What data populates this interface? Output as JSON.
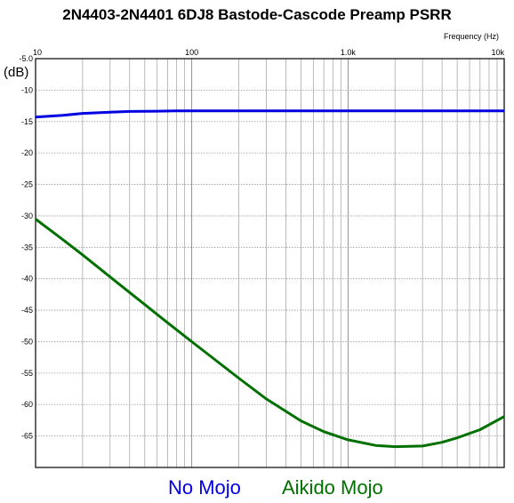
{
  "chart_data": {
    "type": "line",
    "title": "2N4403-2N4401 6DJ8 Bastode-Cascode Preamp PSRR",
    "xlabel": "Frequency  (Hz)",
    "ylabel": "(dB)",
    "x_scale": "log",
    "xlim": [
      10,
      10000
    ],
    "ylim": [
      -70,
      -5
    ],
    "grid": true,
    "legend_position": "bottom",
    "x_tick_labels": [
      {
        "value": 10,
        "label": "10"
      },
      {
        "value": 100,
        "label": "100"
      },
      {
        "value": 1000,
        "label": "1.0k"
      },
      {
        "value": 10000,
        "label": "10k"
      }
    ],
    "y_tick_labels": [
      {
        "value": -5,
        "label": "-5.0"
      },
      {
        "value": -10,
        "label": "-10"
      },
      {
        "value": -15,
        "label": "-15"
      },
      {
        "value": -20,
        "label": "-20"
      },
      {
        "value": -25,
        "label": "-25"
      },
      {
        "value": -30,
        "label": "-30"
      },
      {
        "value": -35,
        "label": "-35"
      },
      {
        "value": -40,
        "label": "-40"
      },
      {
        "value": -45,
        "label": "-45"
      },
      {
        "value": -50,
        "label": "-50"
      },
      {
        "value": -55,
        "label": "-55"
      },
      {
        "value": -60,
        "label": "-60"
      },
      {
        "value": -65,
        "label": "-65"
      }
    ],
    "series": [
      {
        "name": "No Mojo",
        "color": "#0000e0",
        "x": [
          10,
          15,
          20,
          30,
          40,
          60,
          80,
          100,
          200,
          500,
          1000,
          2000,
          5000,
          10000
        ],
        "y": [
          -14.3,
          -14.0,
          -13.7,
          -13.5,
          -13.4,
          -13.35,
          -13.3,
          -13.3,
          -13.3,
          -13.3,
          -13.3,
          -13.3,
          -13.3,
          -13.3
        ]
      },
      {
        "name": "Aikido Mojo",
        "color": "#007000",
        "x": [
          10,
          15,
          20,
          30,
          50,
          70,
          100,
          150,
          200,
          300,
          500,
          700,
          1000,
          1500,
          2000,
          3000,
          4000,
          5000,
          7000,
          10000
        ],
        "y": [
          -30.5,
          -33.8,
          -36.2,
          -39.7,
          -44.1,
          -47.0,
          -50.0,
          -53.4,
          -55.8,
          -59.1,
          -62.6,
          -64.3,
          -65.6,
          -66.5,
          -66.7,
          -66.6,
          -66.0,
          -65.3,
          -64.0,
          -61.9
        ]
      }
    ]
  }
}
